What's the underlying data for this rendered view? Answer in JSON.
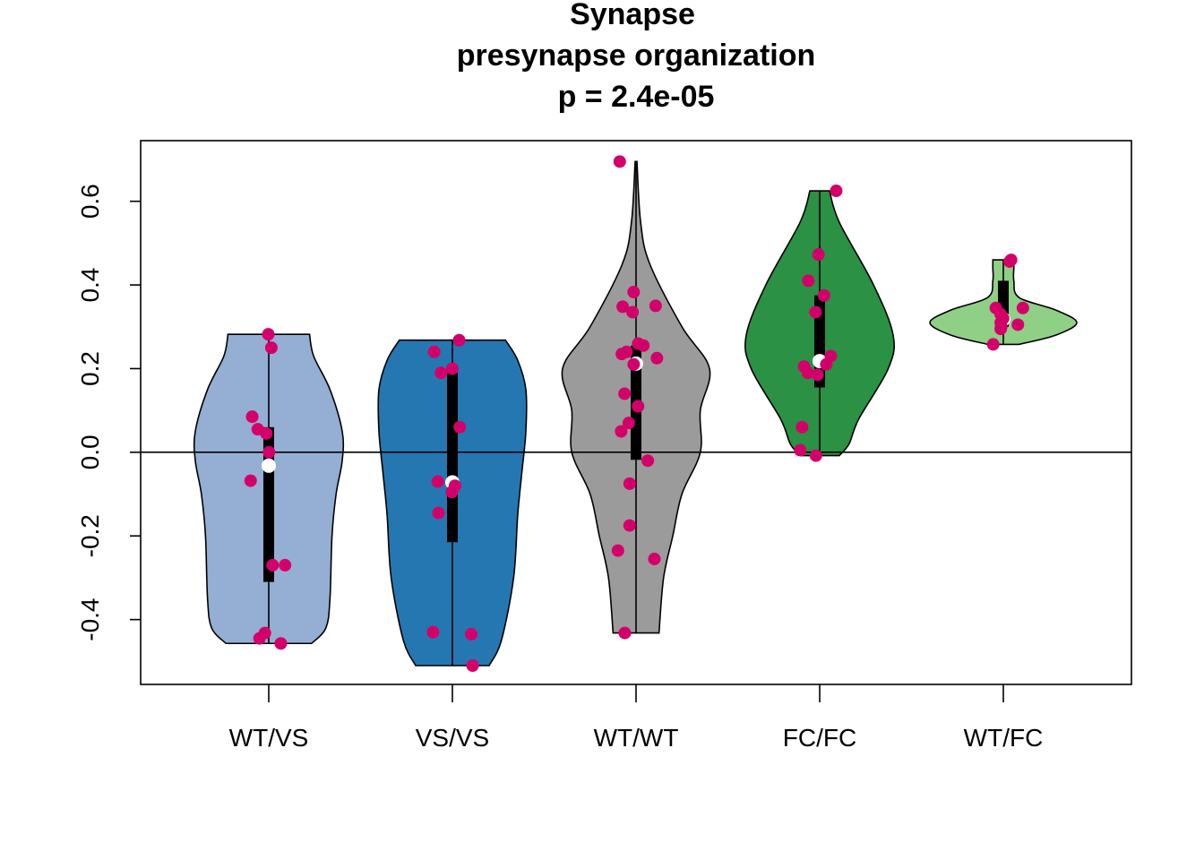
{
  "chart_data": {
    "type": "violin",
    "title_lines": [
      "Synapse",
      "presynapse organization",
      "p = 2.4e-05"
    ],
    "xlabel": "",
    "ylabel": "",
    "ylim": [
      -0.555,
      0.745
    ],
    "yticks": [
      -0.4,
      -0.2,
      0.0,
      0.2,
      0.4,
      0.6
    ],
    "ytick_labels": [
      "-0.4",
      "-0.2",
      "0.0",
      "0.2",
      "0.4",
      "0.6"
    ],
    "reference_line": 0.0,
    "point_color": "#d4006a",
    "median_color": "#ffffff",
    "groups": [
      {
        "label": "WT/VS",
        "fill": "#95aed3",
        "min": -0.457,
        "max": 0.282,
        "q1": -0.31,
        "q3": 0.06,
        "median": -0.032,
        "density": [
          [
            -0.457,
            0.105
          ],
          [
            -0.42,
            0.14
          ],
          [
            -0.35,
            0.15
          ],
          [
            -0.2,
            0.155
          ],
          [
            -0.1,
            0.165
          ],
          [
            -0.02,
            0.18
          ],
          [
            0.05,
            0.18
          ],
          [
            0.15,
            0.15
          ],
          [
            0.23,
            0.11
          ],
          [
            0.282,
            0.1
          ]
        ],
        "points": [
          0.282,
          0.25,
          0.085,
          0.055,
          0.045,
          0.0,
          -0.068,
          -0.27,
          -0.27,
          -0.432,
          -0.445,
          -0.457
        ]
      },
      {
        "label": "VS/VS",
        "fill": "#2577b1",
        "min": -0.51,
        "max": 0.268,
        "q1": -0.215,
        "q3": 0.19,
        "median": -0.072,
        "density": [
          [
            -0.51,
            0.09
          ],
          [
            -0.45,
            0.12
          ],
          [
            -0.3,
            0.15
          ],
          [
            -0.15,
            0.16
          ],
          [
            -0.05,
            0.17
          ],
          [
            0.05,
            0.18
          ],
          [
            0.15,
            0.18
          ],
          [
            0.22,
            0.16
          ],
          [
            0.268,
            0.13
          ]
        ],
        "points": [
          0.268,
          0.24,
          0.2,
          0.19,
          0.06,
          -0.07,
          -0.08,
          -0.095,
          -0.145,
          -0.43,
          -0.435,
          -0.51
        ]
      },
      {
        "label": "WT/WT",
        "fill": "#9b9b9b",
        "min": -0.432,
        "max": 0.695,
        "q1": -0.018,
        "q3": 0.255,
        "median": 0.212,
        "density": [
          [
            -0.432,
            0.025
          ],
          [
            -0.3,
            0.03
          ],
          [
            -0.2,
            0.04
          ],
          [
            -0.1,
            0.05
          ],
          [
            0.0,
            0.07
          ],
          [
            0.1,
            0.07
          ],
          [
            0.2,
            0.08
          ],
          [
            0.3,
            0.05
          ],
          [
            0.45,
            0.015
          ],
          [
            0.55,
            0.005
          ],
          [
            0.695,
            0.001
          ]
        ],
        "points": [
          0.695,
          0.383,
          0.35,
          0.348,
          0.335,
          0.26,
          0.255,
          0.24,
          0.235,
          0.225,
          0.21,
          0.14,
          0.11,
          0.07,
          0.05,
          -0.02,
          -0.075,
          -0.175,
          -0.235,
          -0.255,
          -0.432
        ]
      },
      {
        "label": "FC/FC",
        "fill": "#2b9144",
        "min": -0.008,
        "max": 0.625,
        "q1": 0.155,
        "q3": 0.375,
        "median": 0.218,
        "density": [
          [
            -0.008,
            0.02
          ],
          [
            0.02,
            0.03
          ],
          [
            0.08,
            0.04
          ],
          [
            0.2,
            0.07
          ],
          [
            0.28,
            0.075
          ],
          [
            0.4,
            0.055
          ],
          [
            0.55,
            0.02
          ],
          [
            0.625,
            0.01
          ]
        ],
        "points": [
          0.625,
          0.473,
          0.41,
          0.375,
          0.335,
          0.23,
          0.21,
          0.205,
          0.19,
          0.185,
          0.06,
          0.005,
          -0.008
        ]
      },
      {
        "label": "WT/FC",
        "fill": "#8fcf86",
        "min": 0.258,
        "max": 0.46,
        "q1": 0.3,
        "q3": 0.41,
        "median": 0.318,
        "density": [
          [
            0.258,
            0.015
          ],
          [
            0.28,
            0.05
          ],
          [
            0.31,
            0.07
          ],
          [
            0.34,
            0.05
          ],
          [
            0.37,
            0.015
          ],
          [
            0.41,
            0.01
          ],
          [
            0.44,
            0.01
          ],
          [
            0.46,
            0.01
          ]
        ],
        "points": [
          0.46,
          0.456,
          0.345,
          0.345,
          0.33,
          0.32,
          0.31,
          0.305,
          0.3,
          0.295,
          0.258
        ]
      }
    ]
  }
}
